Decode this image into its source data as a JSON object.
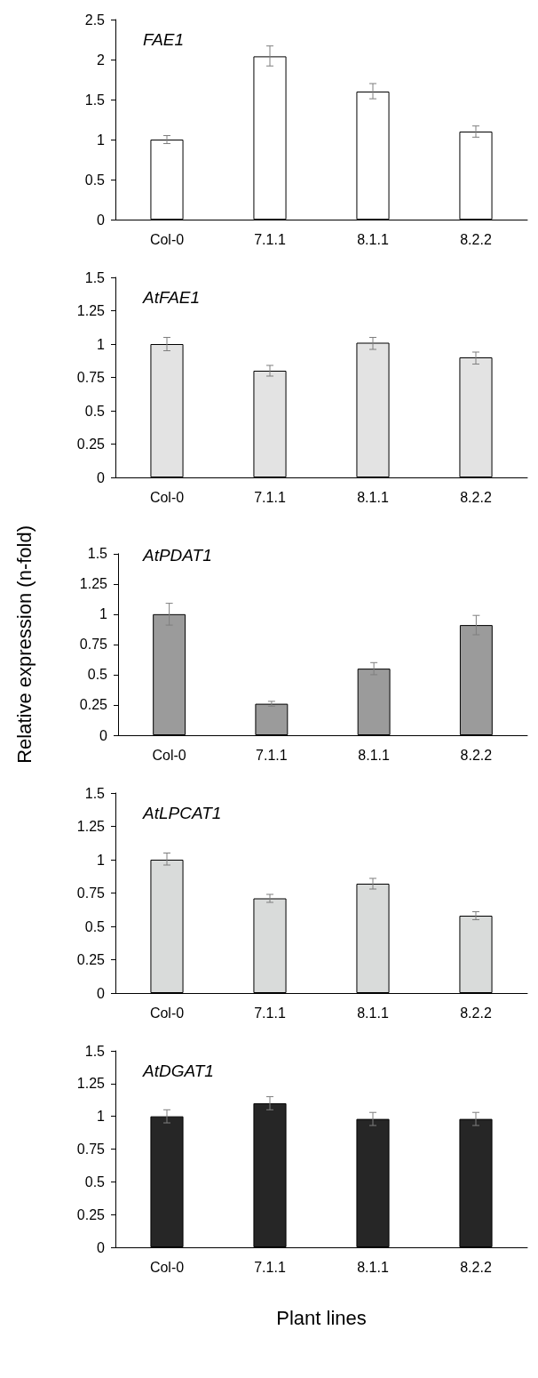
{
  "chart_data": [
    {
      "type": "bar",
      "title": "FAE1",
      "categories": [
        "Col-0",
        "7.1.1",
        "8.1.1",
        "8.2.2"
      ],
      "series": [
        {
          "color": "#ffffff",
          "values": [
            1.0,
            2.04,
            1.6,
            1.1
          ],
          "errors": [
            [
              0.95,
              1.05
            ],
            [
              1.92,
              2.17
            ],
            [
              1.51,
              1.7
            ],
            [
              1.03,
              1.17
            ]
          ]
        }
      ],
      "ylim": [
        0,
        2.5
      ],
      "yticks": [
        0,
        0.5,
        1,
        1.5,
        2,
        2.5
      ],
      "grid": false
    },
    {
      "type": "bar",
      "title": "AtFAE1",
      "categories": [
        "Col-0",
        "7.1.1",
        "8.1.1",
        "8.2.2"
      ],
      "series": [
        {
          "color": "#e3e3e3",
          "values": [
            1.0,
            0.8,
            1.01,
            0.9
          ],
          "errors": [
            [
              0.95,
              1.05
            ],
            [
              0.76,
              0.84
            ],
            [
              0.96,
              1.05
            ],
            [
              0.85,
              0.94
            ]
          ]
        }
      ],
      "ylim": [
        0,
        1.5
      ],
      "yticks": [
        0,
        0.25,
        0.5,
        0.75,
        1,
        1.25,
        1.5
      ],
      "grid": false
    },
    {
      "type": "bar",
      "title": "AtPDAT1",
      "ylabel": "Relative expression (n-fold)",
      "categories": [
        "Col-0",
        "7.1.1",
        "8.1.1",
        "8.2.2"
      ],
      "series": [
        {
          "color": "#9b9b9b",
          "values": [
            1.0,
            0.26,
            0.55,
            0.91
          ],
          "errors": [
            [
              0.91,
              1.09
            ],
            [
              0.24,
              0.28
            ],
            [
              0.5,
              0.6
            ],
            [
              0.83,
              0.99
            ]
          ]
        }
      ],
      "ylim": [
        0,
        1.5
      ],
      "yticks": [
        0,
        0.25,
        0.5,
        0.75,
        1,
        1.25,
        1.5
      ],
      "grid": false
    },
    {
      "type": "bar",
      "title": "AtLPCAT1",
      "categories": [
        "Col-0",
        "7.1.1",
        "8.1.1",
        "8.2.2"
      ],
      "series": [
        {
          "color": "#d9dbda",
          "values": [
            1.0,
            0.71,
            0.82,
            0.58
          ],
          "errors": [
            [
              0.96,
              1.05
            ],
            [
              0.68,
              0.74
            ],
            [
              0.78,
              0.86
            ],
            [
              0.55,
              0.61
            ]
          ]
        }
      ],
      "ylim": [
        0,
        1.5
      ],
      "yticks": [
        0,
        0.25,
        0.5,
        0.75,
        1,
        1.25,
        1.5
      ],
      "grid": false
    },
    {
      "type": "bar",
      "title": "AtDGAT1",
      "xlabel": "Plant lines",
      "categories": [
        "Col-0",
        "7.1.1",
        "8.1.1",
        "8.2.2"
      ],
      "series": [
        {
          "color": "#262626",
          "values": [
            1.0,
            1.1,
            0.98,
            0.98
          ],
          "errors": [
            [
              0.95,
              1.05
            ],
            [
              1.05,
              1.15
            ],
            [
              0.93,
              1.03
            ],
            [
              0.93,
              1.03
            ]
          ]
        }
      ],
      "ylim": [
        0,
        1.5
      ],
      "yticks": [
        0,
        0.25,
        0.5,
        0.75,
        1,
        1.25,
        1.5
      ],
      "grid": false
    }
  ]
}
